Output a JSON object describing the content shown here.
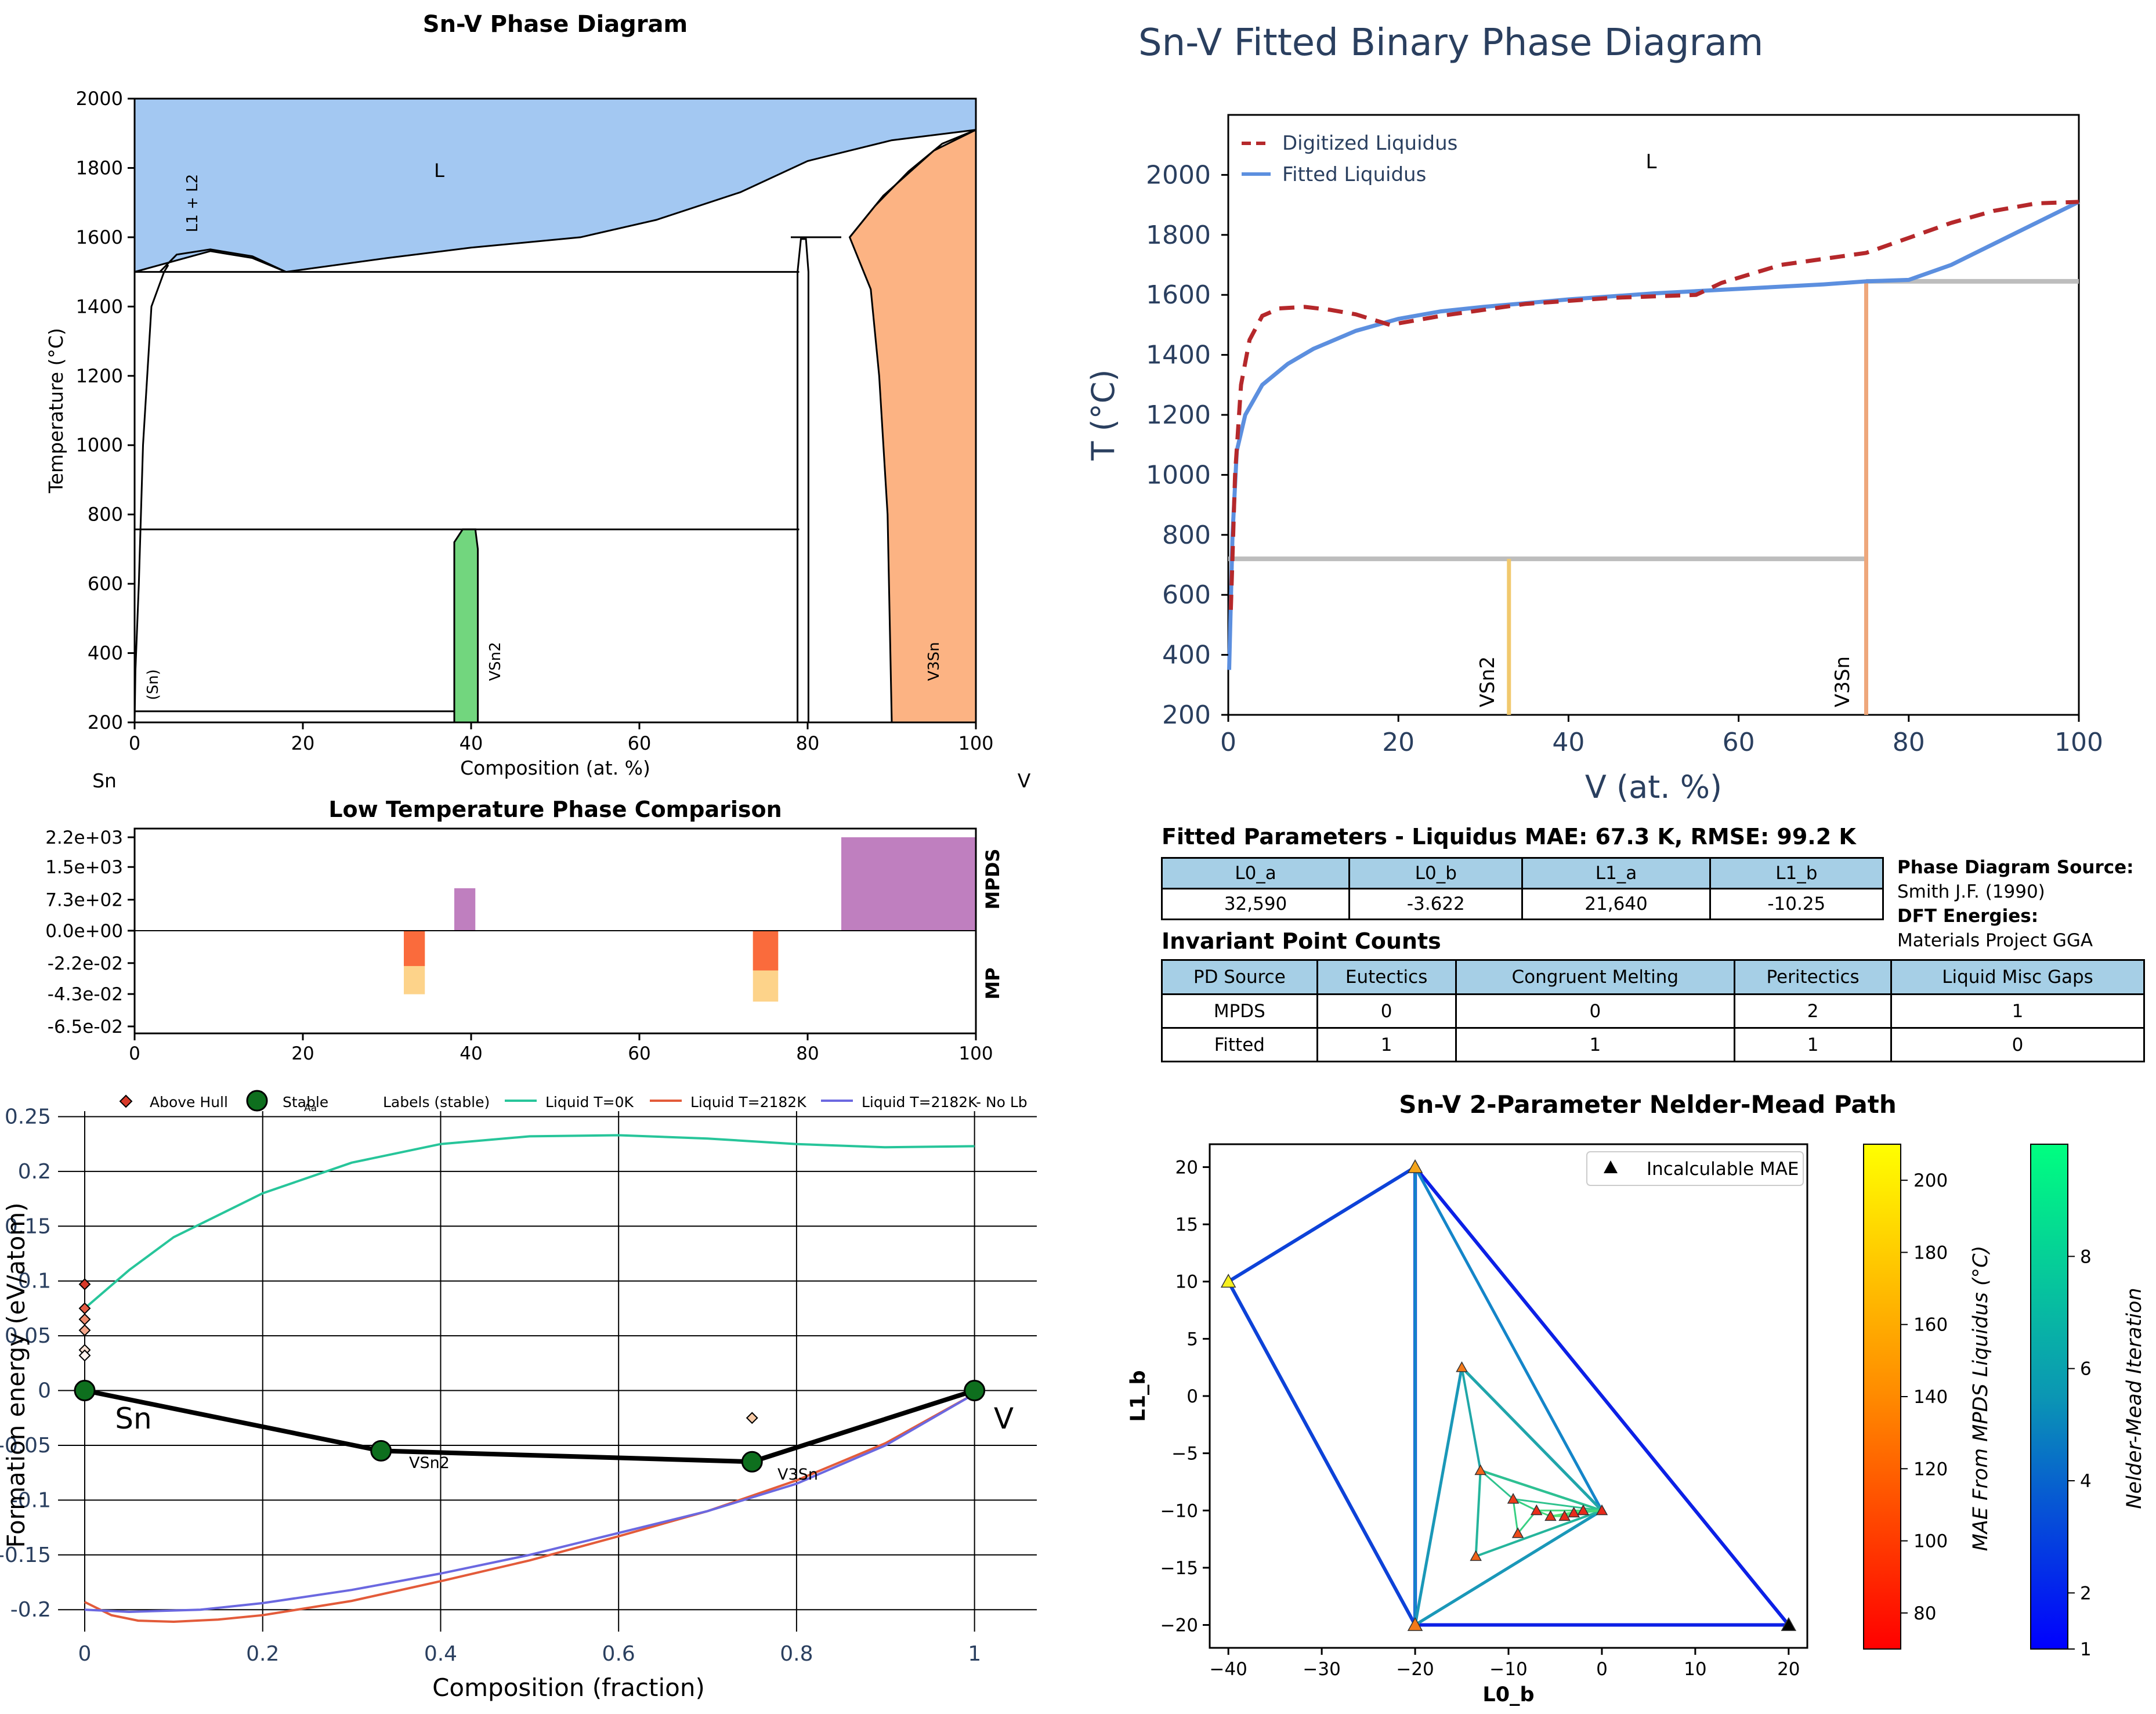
{
  "phase_diagram": {
    "title": "Sn-V Phase Diagram",
    "xlabel": "Composition (at. %)",
    "ylabel": "Temperature (°C)",
    "left_element": "Sn",
    "right_element": "V",
    "xticks": [
      "0",
      "20",
      "40",
      "60",
      "80",
      "100"
    ],
    "yticks": [
      "200",
      "400",
      "600",
      "800",
      "1000",
      "1200",
      "1400",
      "1600",
      "1800",
      "2000"
    ],
    "labels": {
      "liquid": "L",
      "misc": "L1 + L2",
      "sn": "(Sn)",
      "vsn2": "VSn2",
      "v3sn": "V3Sn"
    },
    "colors": {
      "liquid": "#a3c8f2",
      "vsn2": "#72d67e",
      "v3sn": "#fcb383"
    }
  },
  "fitted_diagram": {
    "title": "Sn-V Fitted Binary Phase Diagram",
    "xlabel": "V (at. %)",
    "ylabel": "T (°C)",
    "legend": [
      "Digitized Liquidus",
      "Fitted Liquidus"
    ],
    "label_liquid": "L",
    "label_vsn2": "VSn2",
    "label_v3sn": "V3Sn",
    "xticks": [
      "0",
      "20",
      "40",
      "60",
      "80",
      "100"
    ],
    "yticks": [
      "200",
      "400",
      "600",
      "800",
      "1000",
      "1200",
      "1400",
      "1600",
      "1800",
      "2000"
    ]
  },
  "comparison": {
    "title": "Low Temperature Phase Comparison",
    "yticks": [
      "2.2e+03",
      "1.5e+03",
      "7.3e+02",
      "0.0e+00",
      "-2.2e-02",
      "-4.3e-02",
      "-6.5e-02"
    ],
    "xticks": [
      "0",
      "20",
      "40",
      "60",
      "80",
      "100"
    ],
    "label_top": "MPDS",
    "label_bottom": "MP"
  },
  "hull": {
    "xlabel": "Composition (fraction)",
    "ylabel": "Formation energy (eV/atom)",
    "legend": [
      "Above Hull",
      "Stable",
      "Labels (stable)",
      "Liquid T=0K",
      "Liquid T=2182K",
      "Liquid T=2182K- No Lb"
    ],
    "legend_aa": "Aa",
    "xticks": [
      "0",
      "0.2",
      "0.4",
      "0.6",
      "0.8",
      "1"
    ],
    "yticks": [
      "0.25",
      "0.2",
      "0.15",
      "0.1",
      "0.05",
      "0",
      "-0.05",
      "-0.1",
      "-0.15",
      "-0.2"
    ],
    "label_sn": "Sn",
    "label_v": "V",
    "label_vsn2": "VSn2",
    "label_v3sn": "V3Sn"
  },
  "fit_table": {
    "title": "Fitted Parameters - Liquidus MAE: 67.3 K, RMSE: 99.2 K",
    "headers": [
      "L0_a",
      "L0_b",
      "L1_a",
      "L1_b"
    ],
    "values": [
      "32,590",
      "-3.622",
      "21,640",
      "-10.25"
    ]
  },
  "source": {
    "pd_label": "Phase Diagram Source:",
    "pd_value": "Smith J.F. (1990)",
    "dft_label": "DFT Energies:",
    "dft_value": "Materials Project GGA"
  },
  "invariant_table": {
    "title": "Invariant Point Counts",
    "headers": [
      "PD Source",
      "Eutectics",
      "Congruent Melting",
      "Peritectics",
      "Liquid Misc Gaps"
    ],
    "rows": [
      [
        "MPDS",
        "0",
        "0",
        "2",
        "1"
      ],
      [
        "Fitted",
        "1",
        "1",
        "1",
        "0"
      ]
    ]
  },
  "nelder_mead": {
    "title": "Sn-V 2-Parameter Nelder-Mead Path",
    "xlabel": "L0_b",
    "ylabel": "L1_b",
    "legend": "Incalculable MAE",
    "xticks": [
      "−40",
      "−30",
      "−20",
      "−10",
      "0",
      "10",
      "20"
    ],
    "yticks": [
      "20",
      "15",
      "10",
      "5",
      "0",
      "−5",
      "−10",
      "−15",
      "−20"
    ],
    "cbar1_label": "MAE From MPDS Liquidus (°C)",
    "cbar1_ticks": [
      "200",
      "180",
      "160",
      "140",
      "120",
      "100",
      "80"
    ],
    "cbar2_label": "Nelder-Mead Iteration",
    "cbar2_ticks": [
      "8",
      "6",
      "4",
      "2",
      "1"
    ]
  },
  "chart_data": [
    {
      "type": "area",
      "title": "Sn-V Phase Diagram",
      "xlabel": "Composition (at. %)",
      "ylabel": "Temperature (°C)",
      "xlim": [
        0,
        100
      ],
      "ylim": [
        200,
        2000
      ],
      "liquidus": [
        [
          0,
          1500
        ],
        [
          3,
          1520
        ],
        [
          9,
          1560
        ],
        [
          14,
          1540
        ],
        [
          18,
          1500
        ],
        [
          30,
          1540
        ],
        [
          40,
          1570
        ],
        [
          53,
          1600
        ],
        [
          62,
          1650
        ],
        [
          72,
          1730
        ],
        [
          80,
          1820
        ],
        [
          90,
          1880
        ],
        [
          100,
          1910
        ]
      ],
      "isotherms": [
        {
          "x": [
            0,
            79
          ],
          "T": 1500
        },
        {
          "x": [
            0,
            79
          ],
          "T": 757
        },
        {
          "x": [
            0,
            38
          ],
          "T": 232
        },
        {
          "x": [
            78,
            84
          ],
          "T": 1600
        }
      ],
      "phases": [
        "L",
        "L1 + L2",
        "(Sn)",
        "VSn2",
        "V3Sn"
      ]
    },
    {
      "type": "line",
      "title": "Sn-V Fitted Binary Phase Diagram",
      "xlabel": "V (at. %)",
      "ylabel": "T (°C)",
      "xlim": [
        0,
        100
      ],
      "ylim": [
        200,
        2200
      ],
      "series": [
        {
          "name": "Digitized Liquidus",
          "x": [
            0.3,
            0.8,
            1.5,
            2.5,
            4,
            6,
            9,
            12,
            15,
            19,
            25,
            35,
            45,
            55,
            58,
            65,
            75,
            80,
            85,
            90,
            95,
            100
          ],
          "y": [
            550,
            1000,
            1300,
            1450,
            1530,
            1555,
            1560,
            1550,
            1535,
            1500,
            1530,
            1570,
            1590,
            1600,
            1640,
            1700,
            1740,
            1790,
            1840,
            1880,
            1905,
            1910
          ]
        },
        {
          "name": "Fitted Liquidus",
          "x": [
            0.1,
            0.5,
            1,
            2,
            4,
            7,
            10,
            15,
            20,
            25,
            30,
            40,
            50,
            60,
            70,
            75,
            80,
            85,
            90,
            95,
            100
          ],
          "y": [
            350,
            800,
            1080,
            1200,
            1300,
            1370,
            1420,
            1480,
            1520,
            1545,
            1560,
            1585,
            1605,
            1620,
            1635,
            1645,
            1650,
            1700,
            1770,
            1840,
            1910
          ]
        }
      ],
      "invariants": [
        {
          "x": [
            0,
            75
          ],
          "T": 720
        },
        {
          "x": [
            75,
            100
          ],
          "T": 1645
        }
      ],
      "compounds": [
        {
          "name": "VSn2",
          "x": 33
        },
        {
          "name": "V3Sn",
          "x": 75
        }
      ]
    },
    {
      "type": "bar",
      "title": "Low Temperature Phase Comparison",
      "xlim": [
        0,
        100
      ],
      "mpds": [
        {
          "x0": 38,
          "x1": 40.5,
          "value": 1000
        },
        {
          "x0": 84,
          "x1": 100,
          "value": 2200
        }
      ],
      "mp": [
        {
          "x0": 32,
          "x1": 34.5,
          "value": -0.04
        },
        {
          "x0": 73.5,
          "x1": 76.5,
          "value": -0.045
        }
      ]
    },
    {
      "type": "scatter",
      "xlabel": "Composition (fraction)",
      "ylabel": "Formation energy (eV/atom)",
      "xlim": [
        -0.03,
        1.07
      ],
      "ylim": [
        -0.22,
        0.255
      ],
      "stable": [
        {
          "x": 0,
          "y": 0,
          "label": "Sn"
        },
        {
          "x": 0.333,
          "y": -0.055,
          "label": "VSn2"
        },
        {
          "x": 0.75,
          "y": -0.065,
          "label": "V3Sn"
        },
        {
          "x": 1,
          "y": 0,
          "label": "V"
        }
      ],
      "above_hull": [
        {
          "x": 0,
          "y": 0.097
        },
        {
          "x": 0,
          "y": 0.075
        },
        {
          "x": 0,
          "y": 0.065
        },
        {
          "x": 0,
          "y": 0.055
        },
        {
          "x": 0,
          "y": 0.037
        },
        {
          "x": 0,
          "y": 0.032
        },
        {
          "x": 0.75,
          "y": -0.025
        }
      ],
      "series": [
        {
          "name": "Liquid T=0K",
          "x": [
            0,
            0.05,
            0.1,
            0.2,
            0.3,
            0.4,
            0.5,
            0.6,
            0.7,
            0.8,
            0.9,
            1
          ],
          "y": [
            0.075,
            0.11,
            0.14,
            0.18,
            0.208,
            0.225,
            0.232,
            0.233,
            0.23,
            0.225,
            0.222,
            0.223
          ]
        },
        {
          "name": "Liquid T=2182K",
          "x": [
            0,
            0.03,
            0.06,
            0.1,
            0.15,
            0.2,
            0.3,
            0.4,
            0.5,
            0.6,
            0.7,
            0.8,
            0.9,
            1
          ],
          "y": [
            -0.193,
            -0.205,
            -0.21,
            -0.211,
            -0.209,
            -0.205,
            -0.192,
            -0.174,
            -0.155,
            -0.133,
            -0.11,
            -0.082,
            -0.048,
            -0.003
          ]
        },
        {
          "name": "Liquid T=2182K- No Lb",
          "x": [
            0,
            0.05,
            0.13,
            0.2,
            0.3,
            0.4,
            0.5,
            0.6,
            0.7,
            0.8,
            0.9,
            1
          ],
          "y": [
            -0.2,
            -0.202,
            -0.2,
            -0.194,
            -0.182,
            -0.167,
            -0.15,
            -0.13,
            -0.11,
            -0.085,
            -0.05,
            -0.003
          ]
        }
      ]
    },
    {
      "type": "scatter",
      "title": "Sn-V 2-Parameter Nelder-Mead Path",
      "xlabel": "L0_b",
      "ylabel": "L1_b",
      "xlim": [
        -42,
        22
      ],
      "ylim": [
        -22,
        22
      ],
      "points": [
        [
          -40,
          10
        ],
        [
          -20,
          20
        ],
        [
          -20,
          -20
        ],
        [
          20,
          -20
        ],
        [
          0,
          -10
        ],
        [
          -15,
          2.5
        ],
        [
          -13,
          -6.5
        ],
        [
          -13.5,
          -14
        ],
        [
          -9.5,
          -9
        ],
        [
          -7,
          -10
        ],
        [
          -9,
          -12
        ],
        [
          -5.5,
          -10.5
        ],
        [
          -4,
          -10.5
        ],
        [
          -2,
          -10
        ],
        [
          -3,
          -10.2
        ]
      ],
      "incalculable": [
        [
          20,
          -20
        ]
      ],
      "cbar_mae": [
        70,
        210
      ],
      "cbar_iter": [
        1,
        10
      ]
    }
  ]
}
